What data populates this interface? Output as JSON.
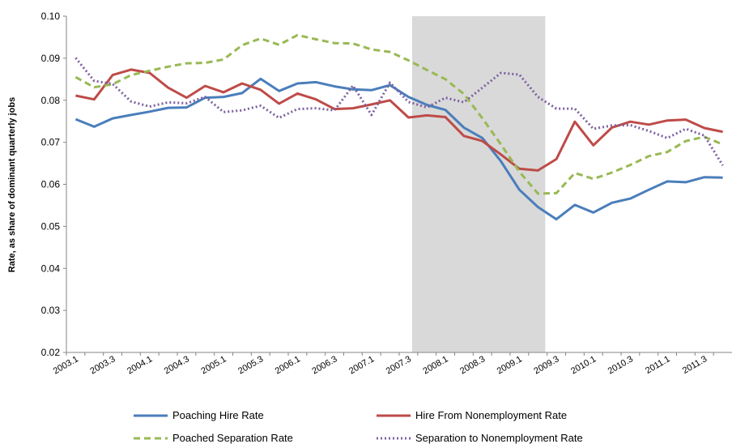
{
  "chart_data": {
    "type": "line",
    "y_label": "Rate, as share of dominant quarterly jobs",
    "categories": [
      "2003.1",
      null,
      "2003.3",
      null,
      "2004.1",
      null,
      "2004.3",
      null,
      "2005.1",
      null,
      "2005.3",
      null,
      "2006.1",
      null,
      "2006.3",
      null,
      "2007.1",
      null,
      "2007.3",
      null,
      "2008.1",
      null,
      "2008.3",
      null,
      "2009.1",
      null,
      "2009.3",
      null,
      "2010.1",
      null,
      "2010.3",
      null,
      "2011.1",
      null,
      "2011.3",
      null
    ],
    "shade": [
      18.7,
      25.9
    ],
    "shade_color": "#d9d9d9",
    "ylim": [
      0.02,
      0.1
    ],
    "yticks": [
      0.02,
      0.03,
      0.04,
      0.05,
      0.06,
      0.07,
      0.08,
      0.09,
      {
        "value": 0.1,
        "label": "0.10"
      }
    ],
    "series": [
      {
        "name": "Poaching Hire Rate",
        "color": "#4a7ebb",
        "dash": "solid",
        "values": [
          0.0755,
          0.0737,
          0.0757,
          0.0765,
          0.0773,
          0.0782,
          0.0783,
          0.0806,
          0.0808,
          0.0817,
          0.0851,
          0.0822,
          0.084,
          0.0843,
          0.0833,
          0.0826,
          0.0824,
          0.0836,
          0.0808,
          0.0789,
          0.0777,
          0.0735,
          0.071,
          0.0655,
          0.0587,
          0.0546,
          0.0517,
          0.0551,
          0.0533,
          0.0556,
          0.0566,
          0.0587,
          0.0607,
          0.0605,
          0.0617,
          0.0616
        ]
      },
      {
        "name": "Hire From Nonemployment Rate",
        "color": "#be4b48",
        "dash": "solid",
        "values": [
          0.0811,
          0.0802,
          0.086,
          0.0873,
          0.0865,
          0.083,
          0.0806,
          0.0834,
          0.0819,
          0.084,
          0.0825,
          0.0792,
          0.0816,
          0.0802,
          0.0779,
          0.0781,
          0.079,
          0.08,
          0.0759,
          0.0764,
          0.076,
          0.0715,
          0.0703,
          0.0671,
          0.0637,
          0.0633,
          0.066,
          0.0749,
          0.0693,
          0.0735,
          0.0749,
          0.0742,
          0.0752,
          0.0754,
          0.0734,
          0.0725
        ]
      },
      {
        "name": "Poached Separation Rate",
        "color": "#98b954",
        "dash": "dashed",
        "values": [
          0.0855,
          0.0831,
          0.0838,
          0.086,
          0.087,
          0.088,
          0.0888,
          0.0889,
          0.0897,
          0.0931,
          0.0947,
          0.0932,
          0.0955,
          0.0945,
          0.0936,
          0.0935,
          0.0921,
          0.0915,
          0.0895,
          0.0872,
          0.085,
          0.0815,
          0.0757,
          0.0695,
          0.063,
          0.0578,
          0.0579,
          0.0627,
          0.0613,
          0.0628,
          0.0646,
          0.0667,
          0.0677,
          0.0703,
          0.0713,
          0.0695
        ]
      },
      {
        "name": "Separation to Nonemployment Rate",
        "color": "#7d60a0",
        "dash": "dotted",
        "values": [
          0.0901,
          0.0846,
          0.0839,
          0.0797,
          0.0785,
          0.0795,
          0.0793,
          0.0808,
          0.0772,
          0.0776,
          0.0787,
          0.0758,
          0.0779,
          0.0781,
          0.0776,
          0.0835,
          0.0765,
          0.0842,
          0.0796,
          0.0783,
          0.0806,
          0.0795,
          0.083,
          0.0865,
          0.0861,
          0.0808,
          0.078,
          0.078,
          0.0732,
          0.074,
          0.0741,
          0.0727,
          0.071,
          0.0732,
          0.0716,
          0.0645
        ]
      }
    ]
  }
}
